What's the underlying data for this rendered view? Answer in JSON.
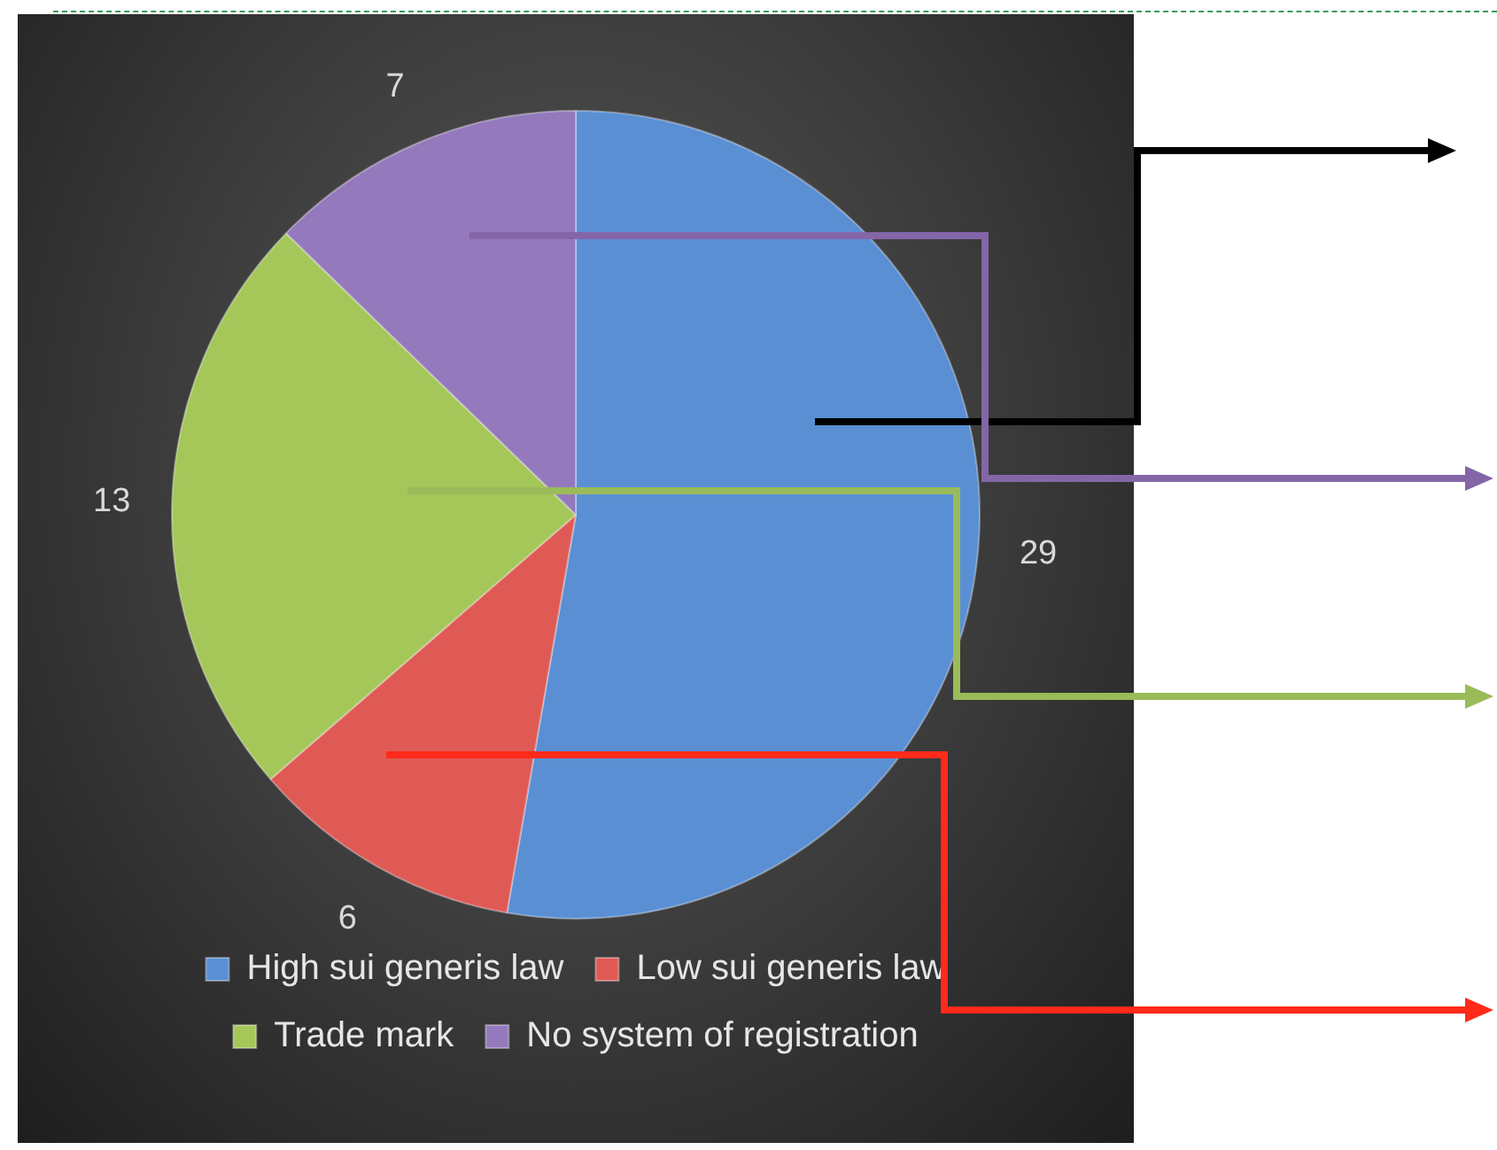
{
  "chart_data": {
    "type": "pie",
    "categories": [
      "High sui generis law",
      "Low sui generis law",
      "Trade mark",
      "No system of registration"
    ],
    "values": [
      29,
      6,
      13,
      7
    ],
    "colors": [
      "#5a8fd4",
      "#e05a55",
      "#a5c75a",
      "#9479bd"
    ],
    "data_labels": true,
    "legend": "bottom"
  }
}
